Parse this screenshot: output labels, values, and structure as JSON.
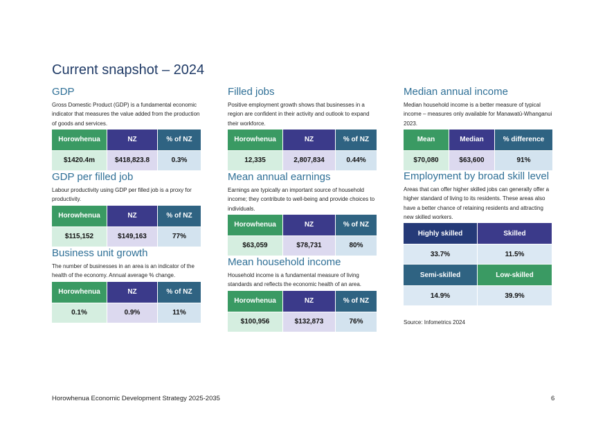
{
  "page": {
    "title": "Current snapshot – 2024",
    "source": "Source: Infometrics 2024",
    "footer": "Horowhenua Economic Development Strategy 2025-2035",
    "page_number": "6"
  },
  "colors": {
    "green": "#3a9a63",
    "purple": "#3b3a8a",
    "teal": "#2f6382",
    "navy": "#253a78",
    "title_blue": "#2e6f96"
  },
  "gdp": {
    "title": "GDP",
    "description": "Gross Domestic Product (GDP) is a fundamental economic indicator that measures the value added from the production of goods and services.",
    "headers": [
      "Horowhenua",
      "NZ",
      "% of NZ"
    ],
    "values": [
      "$1420.4m",
      "$418,823.8",
      "0.3%"
    ]
  },
  "gdp_per_job": {
    "title": "GDP per filled job",
    "description": "Labour productivity using GDP per filled job is a proxy for productivity.",
    "headers": [
      "Horowhenua",
      "NZ",
      "% of NZ"
    ],
    "values": [
      "$115,152",
      "$149,163",
      "77%"
    ]
  },
  "business_growth": {
    "title": "Business unit growth",
    "description": "The number of businesses in an area is an indicator of the health of the economy. Annual average % change.",
    "headers": [
      "Horowhenua",
      "NZ",
      "% of NZ"
    ],
    "values": [
      "0.1%",
      "0.9%",
      "11%"
    ]
  },
  "filled_jobs": {
    "title": "Filled jobs",
    "description": "Positive employment growth shows that businesses in a region are confident in their activity and outlook to expand their workforce.",
    "headers": [
      "Horowhenua",
      "NZ",
      "% of NZ"
    ],
    "values": [
      "12,335",
      "2,807,834",
      "0.44%"
    ]
  },
  "mean_earnings": {
    "title": "Mean annual earnings",
    "description": "Earnings are typically an important source of household income; they contribute to well-being and provide choices to individuals.",
    "headers": [
      "Horowhenua",
      "NZ",
      "% of NZ"
    ],
    "values": [
      "$63,059",
      "$78,731",
      "80%"
    ]
  },
  "household_income": {
    "title": "Mean household income",
    "description": "Household income is a fundamental measure of living standards and reflects the economic health of an area.",
    "headers": [
      "Horowhenua",
      "NZ",
      "% of NZ"
    ],
    "values": [
      "$100,956",
      "$132,873",
      "76%"
    ]
  },
  "median_income": {
    "title": "Median annual income",
    "description": "Median household income is a better measure of typical income – measures only available for Manawatū-Whanganui 2023.",
    "headers": [
      "Mean",
      "Median",
      "% difference"
    ],
    "values": [
      "$70,080",
      "$63,600",
      "91%"
    ]
  },
  "skill_level": {
    "title": "Employment by broad skill level",
    "description": "Areas that can offer higher skilled jobs can generally offer a higher standard of living to its residents. These areas also have a better chance of retaining residents and attracting new skilled workers.",
    "cells": [
      {
        "label": "Highly skilled",
        "value": "33.7%"
      },
      {
        "label": "Skilled",
        "value": "11.5%"
      },
      {
        "label": "Semi-skilled",
        "value": "14.9%"
      },
      {
        "label": "Low-skilled",
        "value": "39.9%"
      }
    ]
  }
}
